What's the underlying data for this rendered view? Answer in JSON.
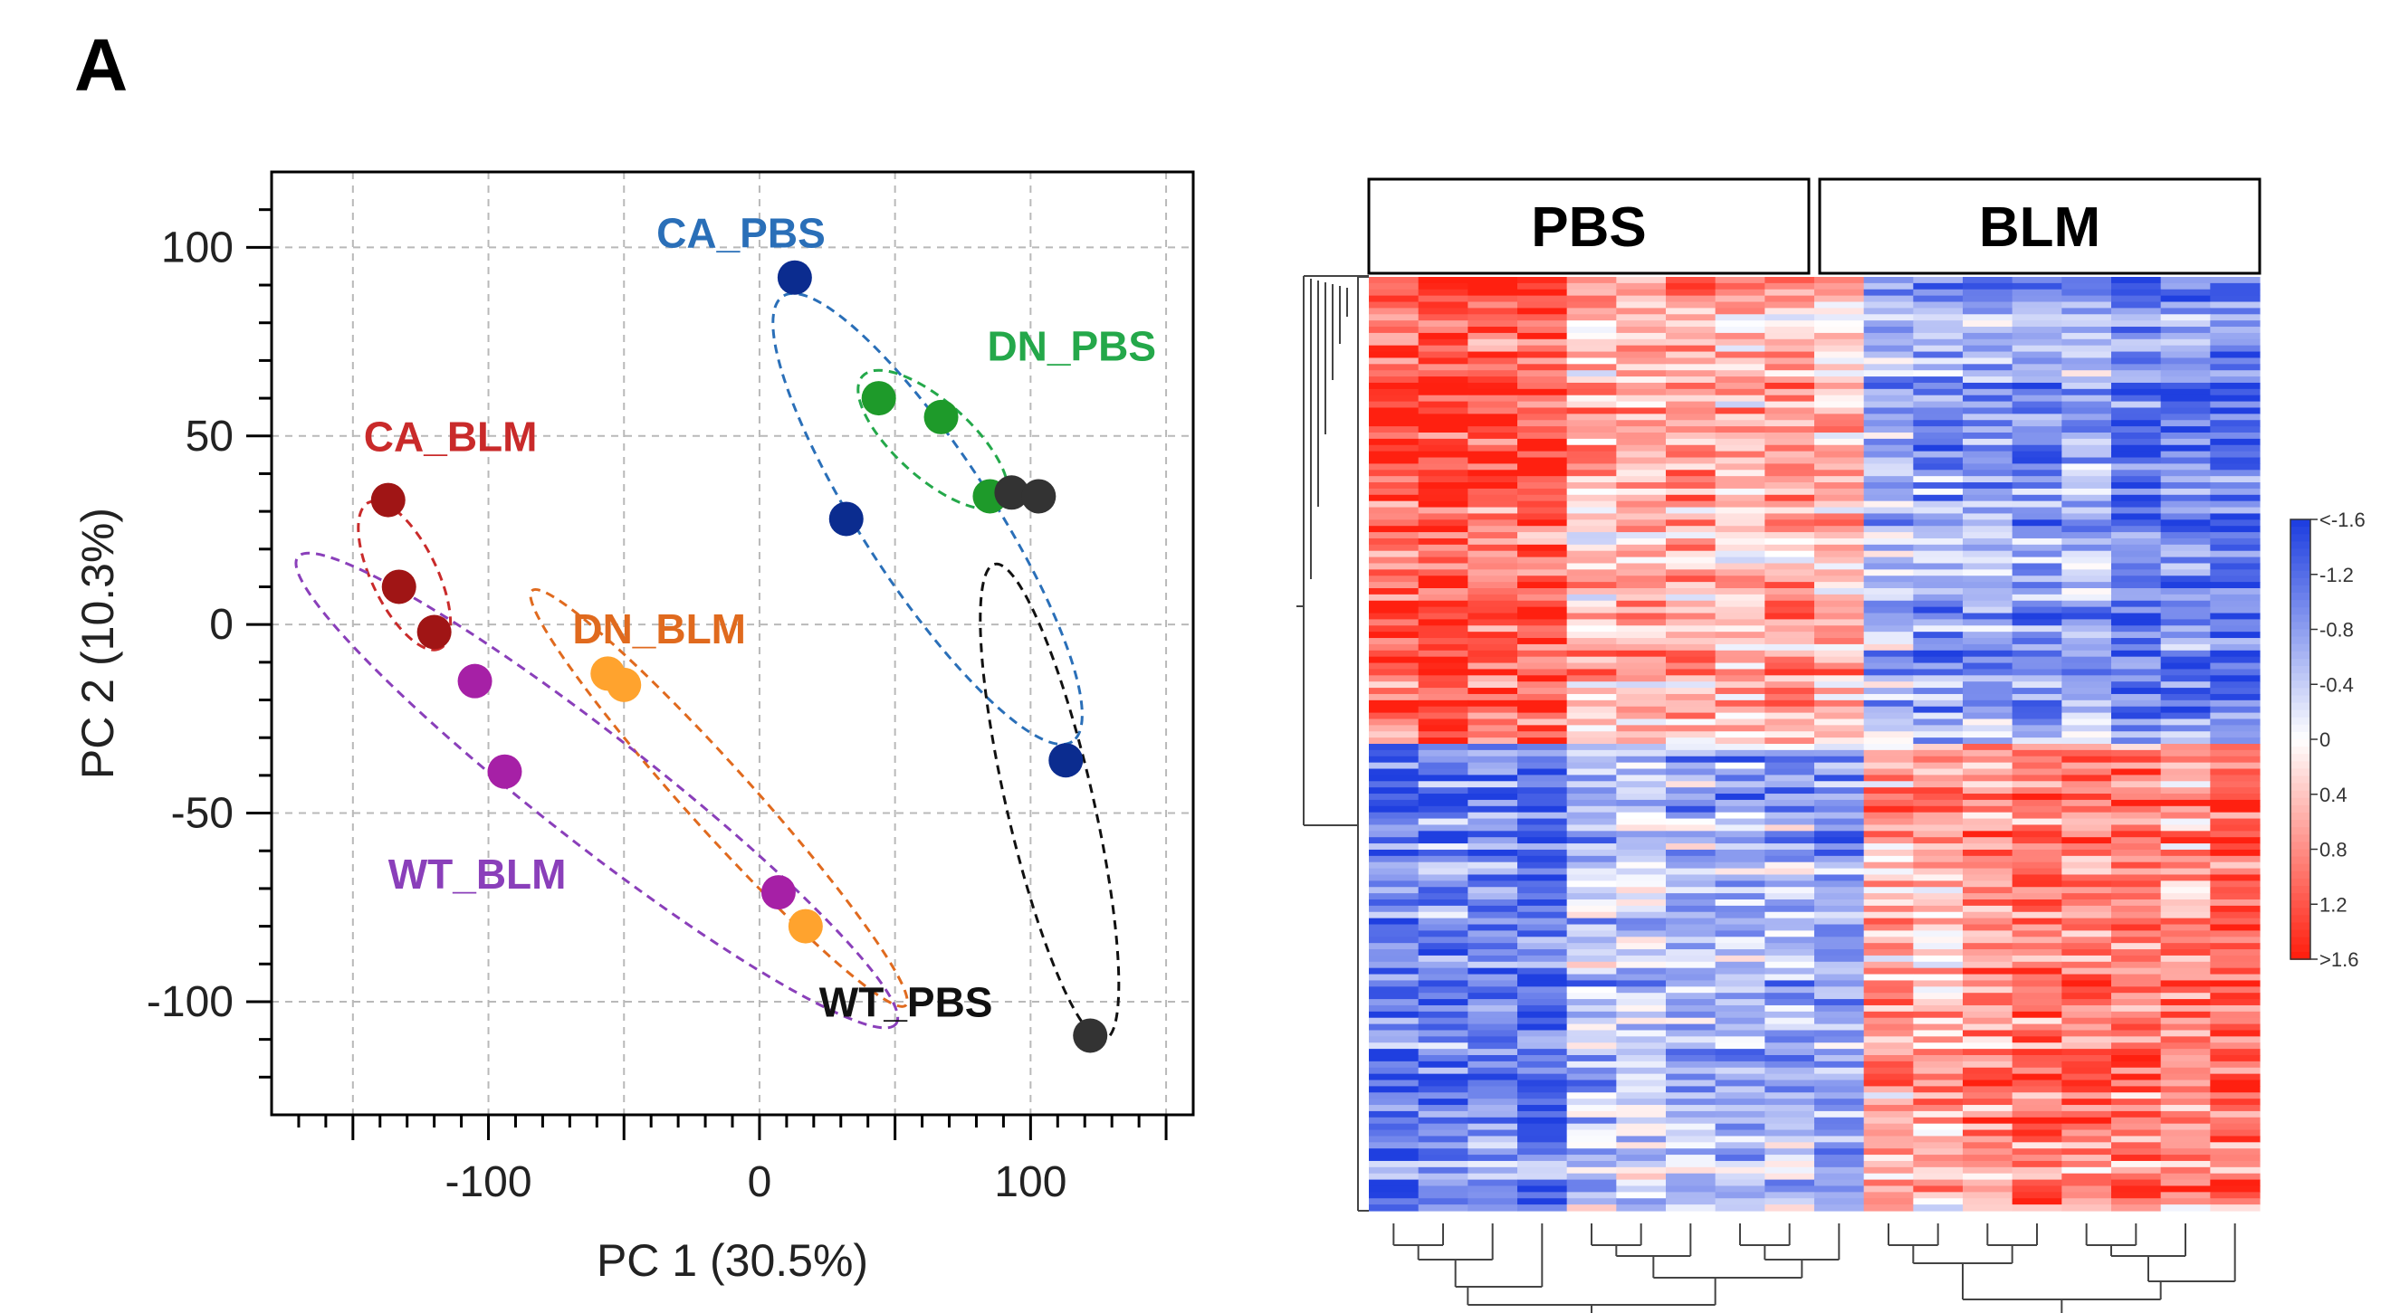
{
  "panel_label": "A",
  "chart_data": [
    {
      "type": "scatter",
      "title": "",
      "xlabel": "PC 1 (30.5%)",
      "ylabel": "PC 2 (10.3%)",
      "xlim": [
        -180,
        160
      ],
      "ylim": [
        -130,
        120
      ],
      "xticks": [
        -100,
        0,
        100
      ],
      "yticks": [
        100,
        50,
        0,
        -50,
        -100
      ],
      "xtick_labels": [
        "-100",
        "0",
        "100"
      ],
      "ytick_labels": [
        "100",
        "50",
        "0",
        "-50",
        "-100"
      ],
      "grid": true,
      "series": [
        {
          "name": "CA_PBS",
          "color": "#0b2c8f",
          "label_color": "#2a6fb8",
          "ellipse": {
            "cx": 62,
            "cy": 28,
            "rx": 98,
            "ry": 24,
            "angle": 57
          },
          "label_pos": [
            -38,
            100
          ],
          "points": [
            [
              13,
              92
            ],
            [
              32,
              28
            ],
            [
              113,
              -36
            ]
          ]
        },
        {
          "name": "DN_PBS",
          "color": "#1e9a2a",
          "label_color": "#24a84a",
          "ellipse": {
            "cx": 64,
            "cy": 49,
            "rx": 35,
            "ry": 14,
            "angle": 42
          },
          "label_pos": [
            84,
            70
          ],
          "points": [
            [
              44,
              60
            ],
            [
              67,
              55
            ],
            [
              85,
              34
            ]
          ]
        },
        {
          "name": "CA_BLM",
          "color": "#a01515",
          "label_color": "#c92a2a",
          "ellipse": {
            "cx": -131,
            "cy": 13,
            "rx": 30,
            "ry": 12,
            "angle": 64
          },
          "label_pos": [
            -146,
            46
          ],
          "points": [
            [
              -137,
              33
            ],
            [
              -133,
              10
            ],
            [
              -120,
              -2
            ]
          ]
        },
        {
          "name": "DN_BLM",
          "color": "#ffa32e",
          "label_color": "#e06a1e",
          "ellipse": {
            "cx": -15,
            "cy": -46,
            "rx": 103,
            "ry": 12,
            "angle": 48
          },
          "label_pos": [
            -69,
            -5
          ],
          "points": [
            [
              -56,
              -13
            ],
            [
              -50,
              -16
            ],
            [
              17,
              -80
            ]
          ]
        },
        {
          "name": "WT_BLM",
          "color": "#a620a6",
          "label_color": "#8a3fba",
          "ellipse": {
            "cx": -60,
            "cy": -44,
            "rx": 140,
            "ry": 20,
            "angle": 38
          },
          "label_pos": [
            -137,
            -70
          ],
          "points": [
            [
              -105,
              -15
            ],
            [
              -94,
              -39
            ],
            [
              7,
              -71
            ]
          ]
        },
        {
          "name": "WT_PBS",
          "color": "#333333",
          "label_color": "#111111",
          "ellipse": {
            "cx": 107,
            "cy": -47,
            "rx": 90,
            "ry": 16,
            "angle": 77
          },
          "label_pos": [
            22,
            -104
          ],
          "points": [
            [
              93,
              35
            ],
            [
              103,
              34
            ],
            [
              122,
              -109
            ]
          ]
        }
      ]
    },
    {
      "type": "heatmap",
      "column_groups": [
        "PBS",
        "BLM"
      ],
      "n_columns": 18,
      "colorscale": {
        "low_color": "#1f3fe0",
        "mid_color": "#ffffff",
        "high_color": "#ff2010",
        "tick_labels": [
          "<-1.6",
          "-1.2",
          "-0.8",
          "-0.4",
          "0",
          "0.4",
          "0.8",
          "1.2",
          ">1.6"
        ]
      },
      "row_clusters": [
        {
          "fraction": 0.5,
          "means": [
            1.4,
            1.55,
            1.3,
            1.4,
            0.6,
            0.7,
            0.8,
            0.5,
            0.8,
            0.6,
            -0.7,
            -1.0,
            -0.9,
            -1.1,
            -0.8,
            -1.3,
            -1.2,
            -1.3
          ]
        },
        {
          "fraction": 0.5,
          "means": [
            -1.3,
            -1.2,
            -1.1,
            -1.4,
            -0.6,
            -0.5,
            -0.7,
            -0.8,
            -0.7,
            -0.9,
            0.7,
            0.6,
            0.9,
            1.2,
            1.0,
            1.1,
            0.9,
            1.3
          ]
        }
      ]
    }
  ]
}
